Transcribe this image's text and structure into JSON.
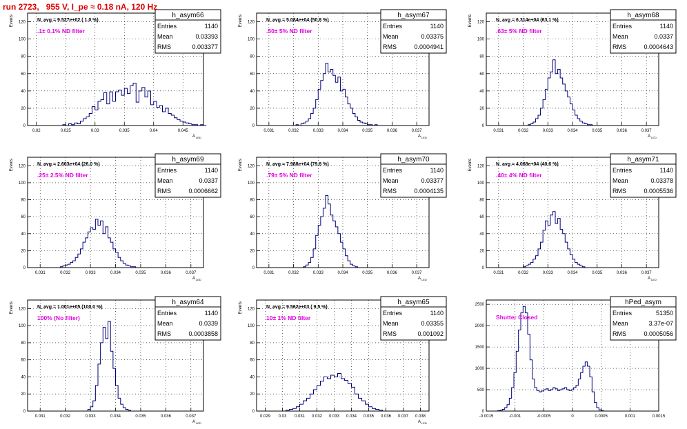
{
  "page": {
    "run_title": "run 2723,   955 V, I_pe ≈ 0.18 nA, 120 Hz"
  },
  "colors": {
    "histogram_line": "#00007a",
    "annotation_magenta": "#e000e0",
    "run_title_red": "#e00000",
    "frame": "#000000",
    "grid": "#000000"
  },
  "chart_data": [
    {
      "type": "histogram",
      "title": "h_asym66",
      "ylabel": "Events",
      "xlabel": "A_LED",
      "x_ticks": [
        0.02,
        0.025,
        0.03,
        0.035,
        0.04,
        0.045
      ],
      "x_tick_labels": [
        "0.02",
        "0.025",
        "0.03",
        "0.035",
        "0.04",
        "0.045"
      ],
      "xlim": [
        0.0185,
        0.0485
      ],
      "y_ticks": [
        0,
        20,
        40,
        60,
        80,
        100,
        120
      ],
      "ylim": [
        0,
        130
      ],
      "grid": true,
      "legend_position": "top-right",
      "stats": {
        "entries_label": "Entries",
        "entries": "1140",
        "mean_label": "Mean",
        "mean": "0.03393",
        "rms_label": "RMS",
        "rms": "0.003377"
      },
      "navg": "N_avg = 9.527e+02 ( 1.0 %)",
      "annotation": ".1± 0.1% ND filter",
      "bins": {
        "x0": 0.0245,
        "width": 0.0005,
        "counts": [
          1,
          0,
          2,
          1,
          3,
          2,
          5,
          8,
          10,
          14,
          22,
          18,
          28,
          30,
          38,
          25,
          39,
          28,
          39,
          41,
          35,
          43,
          37,
          46,
          49,
          27,
          40,
          44,
          33,
          40,
          24,
          28,
          21,
          23,
          16,
          20,
          14,
          12,
          9,
          7,
          5,
          4,
          3,
          2,
          1,
          1,
          0,
          1,
          0
        ]
      }
    },
    {
      "type": "histogram",
      "title": "h_asym67",
      "ylabel": "Events",
      "xlabel": "A_LED",
      "x_ticks": [
        0.031,
        0.032,
        0.033,
        0.034,
        0.035,
        0.036,
        0.037
      ],
      "x_tick_labels": [
        "0.031",
        "0.032",
        "0.033",
        "0.034",
        "0.035",
        "0.036",
        "0.037"
      ],
      "xlim": [
        0.0305,
        0.0375
      ],
      "y_ticks": [
        0,
        20,
        40,
        60,
        80,
        100,
        120
      ],
      "ylim": [
        0,
        130
      ],
      "grid": true,
      "legend_position": "top-right",
      "stats": {
        "entries_label": "Entries",
        "entries": "1140",
        "mean_label": "Mean",
        "mean": "0.03375",
        "rms_label": "RMS",
        "rms": "0.0004941"
      },
      "navg": "N_avg = 5.084e+04 (50.8 %)",
      "annotation": ".50± 5% ND filter",
      "bins": {
        "x0": 0.0321,
        "width": 0.0001,
        "counts": [
          1,
          0,
          2,
          3,
          5,
          8,
          14,
          20,
          30,
          42,
          52,
          60,
          72,
          62,
          65,
          58,
          50,
          56,
          40,
          42,
          33,
          25,
          20,
          14,
          10,
          6,
          4,
          3,
          2,
          1,
          1,
          0,
          1
        ]
      }
    },
    {
      "type": "histogram",
      "title": "h_asym68",
      "ylabel": "Events",
      "xlabel": "A_LED",
      "x_ticks": [
        0.031,
        0.032,
        0.033,
        0.034,
        0.035,
        0.036,
        0.037
      ],
      "x_tick_labels": [
        "0.031",
        "0.032",
        "0.033",
        "0.034",
        "0.035",
        "0.036",
        "0.037"
      ],
      "xlim": [
        0.0305,
        0.0375
      ],
      "y_ticks": [
        0,
        20,
        40,
        60,
        80,
        100,
        120
      ],
      "ylim": [
        0,
        130
      ],
      "grid": true,
      "legend_position": "top-right",
      "stats": {
        "entries_label": "Entries",
        "entries": "1140",
        "mean_label": "Mean",
        "mean": "0.0337",
        "rms_label": "RMS",
        "rms": "0.0004643"
      },
      "navg": "N_avg = 6.314e+04 (63.1 %)",
      "annotation": ".63± 5% ND filter",
      "bins": {
        "x0": 0.0322,
        "width": 0.0001,
        "counts": [
          1,
          2,
          4,
          8,
          12,
          20,
          30,
          42,
          55,
          62,
          76,
          60,
          65,
          55,
          48,
          40,
          33,
          25,
          18,
          12,
          8,
          5,
          3,
          2,
          1,
          1,
          0
        ]
      }
    },
    {
      "type": "histogram",
      "title": "h_asym69",
      "ylabel": "Events",
      "xlabel": "A_LED",
      "x_ticks": [
        0.031,
        0.032,
        0.033,
        0.034,
        0.035,
        0.036,
        0.037
      ],
      "x_tick_labels": [
        "0.031",
        "0.032",
        "0.033",
        "0.034",
        "0.035",
        "0.036",
        "0.037"
      ],
      "xlim": [
        0.0305,
        0.0375
      ],
      "y_ticks": [
        0,
        20,
        40,
        60,
        80,
        100,
        120
      ],
      "ylim": [
        0,
        130
      ],
      "grid": true,
      "legend_position": "top-right",
      "stats": {
        "entries_label": "Entries",
        "entries": "1140",
        "mean_label": "Mean",
        "mean": "0.0337",
        "rms_label": "RMS",
        "rms": "0.0006662"
      },
      "navg": "N_avg = 2.603e+04 (26.0 %)",
      "annotation": ".25± 2.5% ND filter",
      "bins": {
        "x0": 0.0318,
        "width": 0.0001,
        "counts": [
          1,
          2,
          3,
          4,
          6,
          8,
          12,
          16,
          22,
          30,
          35,
          42,
          47,
          45,
          57,
          50,
          55,
          40,
          48,
          35,
          30,
          22,
          18,
          12,
          8,
          5,
          3,
          2,
          1,
          1
        ]
      }
    },
    {
      "type": "histogram",
      "title": "h_asym70",
      "ylabel": "Events",
      "xlabel": "A_LED",
      "x_ticks": [
        0.031,
        0.032,
        0.033,
        0.034,
        0.035,
        0.036,
        0.037
      ],
      "x_tick_labels": [
        "0.031",
        "0.032",
        "0.033",
        "0.034",
        "0.035",
        "0.036",
        "0.037"
      ],
      "xlim": [
        0.0305,
        0.0375
      ],
      "y_ticks": [
        0,
        20,
        40,
        60,
        80,
        100,
        120
      ],
      "ylim": [
        0,
        130
      ],
      "grid": true,
      "legend_position": "top-right",
      "stats": {
        "entries_label": "Entries",
        "entries": "1140",
        "mean_label": "Mean",
        "mean": "0.03377",
        "rms_label": "RMS",
        "rms": "0.0004135"
      },
      "navg": "N_avg = 7.988e+04 (79.8 %)",
      "annotation": ".79± 5% ND filter",
      "bins": {
        "x0": 0.0324,
        "width": 0.0001,
        "counts": [
          1,
          3,
          6,
          12,
          22,
          38,
          50,
          60,
          70,
          85,
          75,
          62,
          55,
          48,
          40,
          30,
          22,
          14,
          8,
          4,
          2,
          1
        ]
      }
    },
    {
      "type": "histogram",
      "title": "h_asym71",
      "ylabel": "Events",
      "xlabel": "A_LED",
      "x_ticks": [
        0.031,
        0.032,
        0.033,
        0.034,
        0.035,
        0.036,
        0.037
      ],
      "x_tick_labels": [
        "0.031",
        "0.032",
        "0.033",
        "0.034",
        "0.035",
        "0.036",
        "0.037"
      ],
      "xlim": [
        0.0305,
        0.0375
      ],
      "y_ticks": [
        0,
        20,
        40,
        60,
        80,
        100,
        120
      ],
      "ylim": [
        0,
        130
      ],
      "grid": true,
      "legend_position": "top-right",
      "stats": {
        "entries_label": "Entries",
        "entries": "1140",
        "mean_label": "Mean",
        "mean": "0.03378",
        "rms_label": "RMS",
        "rms": "0.0005536"
      },
      "navg": "N_avg = 4.068e+04 (40.6 %)",
      "annotation": ".40± 4% ND filter",
      "bins": {
        "x0": 0.032,
        "width": 0.0001,
        "counts": [
          1,
          2,
          4,
          6,
          10,
          14,
          22,
          30,
          44,
          55,
          50,
          62,
          66,
          52,
          58,
          45,
          40,
          30,
          22,
          15,
          10,
          6,
          4,
          2,
          1
        ]
      }
    },
    {
      "type": "histogram",
      "title": "h_asym64",
      "ylabel": "Events",
      "xlabel": "A_LED",
      "x_ticks": [
        0.031,
        0.032,
        0.033,
        0.034,
        0.035,
        0.036,
        0.037
      ],
      "x_tick_labels": [
        "0.031",
        "0.032",
        "0.033",
        "0.034",
        "0.035",
        "0.036",
        "0.037"
      ],
      "xlim": [
        0.0305,
        0.0375
      ],
      "y_ticks": [
        0,
        20,
        40,
        60,
        80,
        100,
        120
      ],
      "ylim": [
        0,
        130
      ],
      "grid": true,
      "legend_position": "top-right",
      "stats": {
        "entries_label": "Entries",
        "entries": "1140",
        "mean_label": "Mean",
        "mean": "0.0339",
        "rms_label": "RMS",
        "rms": "0.0003858"
      },
      "navg": "N_avg = 1.001e+05 (100.0 %)",
      "annotation": "100% (No filter)",
      "bins": {
        "x0": 0.0329,
        "width": 0.0001,
        "counts": [
          2,
          5,
          12,
          30,
          55,
          80,
          98,
          85,
          105,
          70,
          50,
          30,
          15,
          8,
          4,
          2,
          1
        ]
      }
    },
    {
      "type": "histogram",
      "title": "h_asym65",
      "ylabel": "Events",
      "xlabel": "A_LED",
      "x_ticks": [
        0.029,
        0.03,
        0.031,
        0.032,
        0.033,
        0.034,
        0.035,
        0.036,
        0.037,
        0.038
      ],
      "x_tick_labels": [
        "0.029",
        "0.03",
        "0.031",
        "0.032",
        "0.033",
        "0.034",
        "0.035",
        "0.036",
        "0.037",
        "0.038"
      ],
      "xlim": [
        0.0285,
        0.0385
      ],
      "y_ticks": [
        0,
        20,
        40,
        60,
        80,
        100,
        120
      ],
      "ylim": [
        0,
        130
      ],
      "grid": true,
      "legend_position": "top-right",
      "stats": {
        "entries_label": "Entries",
        "entries": "1140",
        "mean_label": "Mean",
        "mean": "0.03355",
        "rms_label": "RMS",
        "rms": "0.001092"
      },
      "navg": "N_avg = 9.562e+03 ( 9.5 %)",
      "annotation": "10± 1% ND filter",
      "bins": {
        "x0": 0.0302,
        "width": 0.0002,
        "counts": [
          1,
          2,
          3,
          5,
          8,
          12,
          15,
          20,
          25,
          30,
          35,
          40,
          38,
          42,
          40,
          44,
          38,
          36,
          32,
          28,
          20,
          15,
          12,
          8,
          5,
          3,
          2,
          1
        ]
      }
    },
    {
      "type": "histogram",
      "title": "hPed_asym",
      "ylabel": "",
      "xlabel": "",
      "x_ticks": [
        -0.0015,
        -0.001,
        -0.0005,
        0,
        0.0005,
        0.001,
        0.0015
      ],
      "x_tick_labels": [
        "-0.0015",
        "-0.001",
        "-0.0005",
        "0",
        "0.0005",
        "0.001",
        "0.0015"
      ],
      "xlim": [
        -0.0015,
        0.0015
      ],
      "y_ticks": [
        0,
        500,
        1000,
        1500,
        2000,
        2500
      ],
      "ylim": [
        0,
        2600
      ],
      "grid": true,
      "legend_position": "top-right",
      "stats": {
        "entries_label": "Entries",
        "entries": "51350",
        "mean_label": "Mean",
        "mean": "3.37e-07",
        "rms_label": "RMS",
        "rms": "0.0005056"
      },
      "navg": "",
      "annotation": "Shutter Closed",
      "bins": {
        "x0": -0.0013,
        "width": 4e-05,
        "counts": [
          10,
          20,
          40,
          80,
          150,
          300,
          550,
          900,
          1400,
          1900,
          2300,
          2450,
          2300,
          1800,
          1200,
          750,
          550,
          480,
          450,
          470,
          500,
          520,
          480,
          500,
          550,
          520,
          480,
          500,
          520,
          550,
          500,
          480,
          500,
          550,
          600,
          750,
          900,
          1050,
          1150,
          1050,
          800,
          450,
          200,
          80,
          30,
          10
        ]
      }
    }
  ]
}
